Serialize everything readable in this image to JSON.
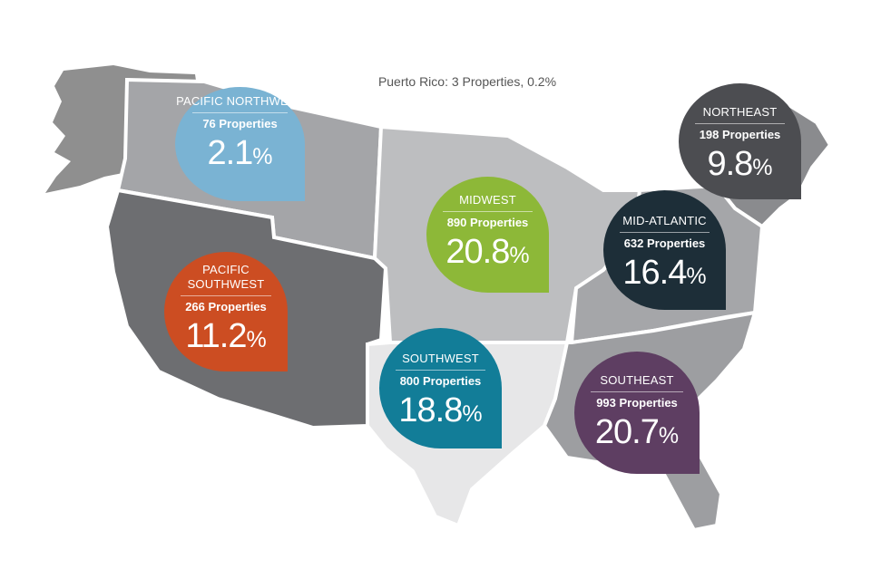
{
  "puerto_rico_note": "Puerto Rico: 3 Properties, 0.2%",
  "regions": {
    "pacific_northwest": {
      "name": "PACIFIC NORTHWEST",
      "properties": "76 Properties",
      "percent": "2.1",
      "color": "#7ab3d3"
    },
    "pacific_southwest": {
      "name": "PACIFIC SOUTHWEST",
      "properties": "266 Properties",
      "percent": "11.2",
      "color": "#cc4d22"
    },
    "midwest": {
      "name": "MIDWEST",
      "properties": "890 Properties",
      "percent": "20.8",
      "color": "#8db838"
    },
    "southwest": {
      "name": "SOUTHWEST",
      "properties": "800 Properties",
      "percent": "18.8",
      "color": "#127d98"
    },
    "northeast": {
      "name": "NORTHEAST",
      "properties": "198 Properties",
      "percent": "9.8",
      "color": "#4c4d51"
    },
    "mid_atlantic": {
      "name": "MID-ATLANTIC",
      "properties": "632 Properties",
      "percent": "16.4",
      "color": "#1d2e38"
    },
    "southeast": {
      "name": "SOUTHEAST",
      "properties": "993 Properties",
      "percent": "20.7",
      "color": "#5e3e62"
    }
  },
  "percent_sign": "%"
}
